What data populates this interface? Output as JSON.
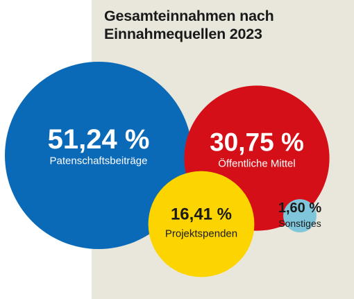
{
  "title_lines": [
    "Gesamteinnahmen nach",
    "Einnahmequellen 2023"
  ],
  "colors": {
    "panel": "#e9e6dc",
    "title": "#1a1a1a",
    "text_light": "#ffffff",
    "text_dark": "#1a1a1a"
  },
  "chart_data": {
    "type": "bubble",
    "title": "Gesamteinnahmen nach Einnahmequellen 2023",
    "unit": "%",
    "categories": [
      "Patenschaftsbeiträge",
      "Öffentliche Mittel",
      "Projektspenden",
      "Sonstiges"
    ],
    "values": [
      51.24,
      30.75,
      16.41,
      1.6
    ],
    "value_labels": [
      "51,24 %",
      "30,75 %",
      "16,41 %",
      "1,60 %"
    ],
    "colors": [
      "#0a6ab8",
      "#d50f18",
      "#fcd400",
      "#7fc6db"
    ],
    "grid": false,
    "legend": "none"
  }
}
